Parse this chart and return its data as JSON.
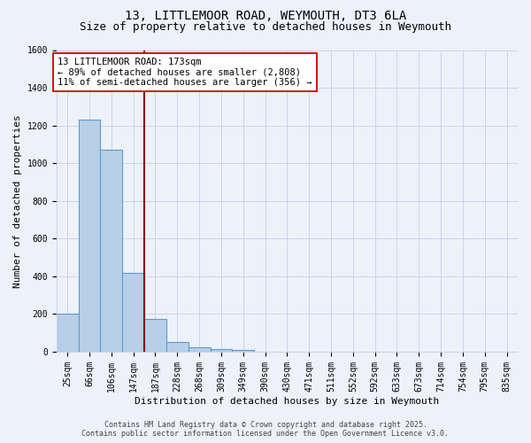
{
  "title": "13, LITTLEMOOR ROAD, WEYMOUTH, DT3 6LA",
  "subtitle": "Size of property relative to detached houses in Weymouth",
  "xlabel": "Distribution of detached houses by size in Weymouth",
  "ylabel": "Number of detached properties",
  "categories": [
    "25sqm",
    "66sqm",
    "106sqm",
    "147sqm",
    "187sqm",
    "228sqm",
    "268sqm",
    "309sqm",
    "349sqm",
    "390sqm",
    "430sqm",
    "471sqm",
    "511sqm",
    "552sqm",
    "592sqm",
    "633sqm",
    "673sqm",
    "714sqm",
    "754sqm",
    "795sqm",
    "835sqm"
  ],
  "values": [
    200,
    1230,
    1070,
    420,
    175,
    50,
    25,
    15,
    10,
    0,
    0,
    0,
    0,
    0,
    0,
    0,
    0,
    0,
    0,
    0,
    0
  ],
  "bar_color": "#b8cfe8",
  "bar_edge_color": "#5b9bd5",
  "grid_color": "#ccd4ea",
  "background_color": "#edf1f9",
  "vline_color": "#8b0000",
  "annotation_line1": "13 LITTLEMOOR ROAD: 173sqm",
  "annotation_line2": "← 89% of detached houses are smaller (2,808)",
  "annotation_line3": "11% of semi-detached houses are larger (356) →",
  "annotation_box_facecolor": "#ffffff",
  "annotation_box_edgecolor": "#cc0000",
  "ylim": [
    0,
    1600
  ],
  "yticks": [
    0,
    200,
    400,
    600,
    800,
    1000,
    1200,
    1400,
    1600
  ],
  "footer_line1": "Contains HM Land Registry data © Crown copyright and database right 2025.",
  "footer_line2": "Contains public sector information licensed under the Open Government Licence v3.0.",
  "title_fontsize": 10,
  "subtitle_fontsize": 9,
  "axis_label_fontsize": 8,
  "tick_fontsize": 7,
  "annotation_fontsize": 7.5,
  "footer_fontsize": 6
}
